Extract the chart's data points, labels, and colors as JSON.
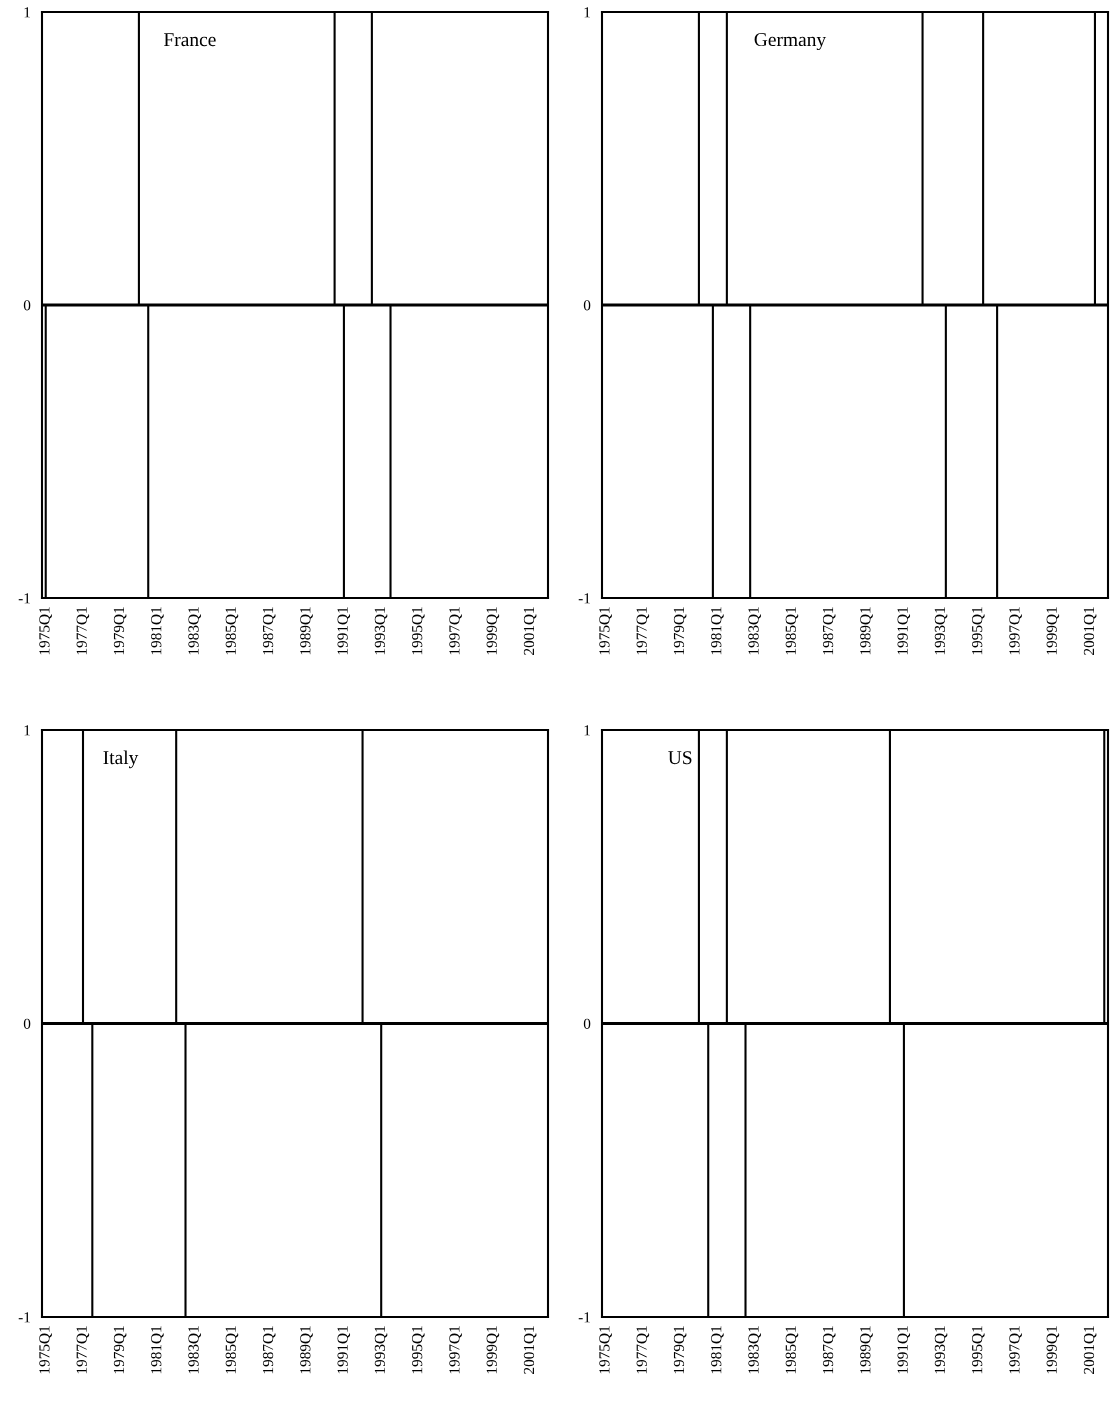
{
  "chart_data": [
    {
      "type": "bar",
      "title": "France",
      "color": "#000000",
      "ylim": [
        -1,
        1
      ],
      "yticks": [
        -1,
        0,
        1
      ],
      "categories": [
        "1975Q1",
        null,
        null,
        null,
        null,
        null,
        null,
        null,
        "1977Q1",
        null,
        null,
        null,
        null,
        null,
        null,
        null,
        "1979Q1",
        null,
        null,
        null,
        null,
        null,
        null,
        null,
        "1981Q1",
        null,
        null,
        null,
        null,
        null,
        null,
        null,
        "1983Q1",
        null,
        null,
        null,
        null,
        null,
        null,
        null,
        "1985Q1",
        null,
        null,
        null,
        null,
        null,
        null,
        null,
        "1987Q1",
        null,
        null,
        null,
        null,
        null,
        null,
        null,
        "1989Q1",
        null,
        null,
        null,
        null,
        null,
        null,
        null,
        "1991Q1",
        null,
        null,
        null,
        null,
        null,
        null,
        null,
        "1993Q1",
        null,
        null,
        null,
        null,
        null,
        null,
        null,
        "1995Q1",
        null,
        null,
        null,
        null,
        null,
        null,
        null,
        "1997Q1",
        null,
        null,
        null,
        null,
        null,
        null,
        null,
        "1999Q1",
        null,
        null,
        null,
        null,
        null,
        null,
        null,
        "2001Q1",
        null,
        null,
        null
      ],
      "values": [
        -1,
        0,
        0,
        0,
        0,
        0,
        0,
        0,
        0,
        0,
        0,
        0,
        0,
        0,
        0,
        0,
        0,
        0,
        0,
        0,
        1,
        0,
        -1,
        0,
        0,
        0,
        0,
        0,
        0,
        0,
        0,
        0,
        0,
        0,
        0,
        0,
        0,
        0,
        0,
        0,
        0,
        0,
        0,
        0,
        0,
        0,
        0,
        0,
        0,
        0,
        0,
        0,
        0,
        0,
        0,
        0,
        0,
        0,
        0,
        0,
        0,
        0,
        1,
        0,
        -1,
        0,
        0,
        0,
        0,
        0,
        1,
        0,
        0,
        0,
        -1,
        0,
        0,
        0,
        0,
        0,
        0,
        0,
        0,
        0,
        0,
        0,
        0,
        0,
        0,
        0,
        0,
        0,
        0,
        0,
        0,
        0,
        0,
        0,
        0,
        0,
        0,
        0,
        0,
        0,
        0,
        0,
        0,
        0
      ]
    },
    {
      "type": "bar",
      "title": "Germany",
      "color": "#000000",
      "ylim": [
        -1,
        1
      ],
      "yticks": [
        -1,
        0,
        1
      ],
      "categories": [
        "1975Q1",
        null,
        null,
        null,
        null,
        null,
        null,
        null,
        "1977Q1",
        null,
        null,
        null,
        null,
        null,
        null,
        null,
        "1979Q1",
        null,
        null,
        null,
        null,
        null,
        null,
        null,
        "1981Q1",
        null,
        null,
        null,
        null,
        null,
        null,
        null,
        "1983Q1",
        null,
        null,
        null,
        null,
        null,
        null,
        null,
        "1985Q1",
        null,
        null,
        null,
        null,
        null,
        null,
        null,
        "1987Q1",
        null,
        null,
        null,
        null,
        null,
        null,
        null,
        "1989Q1",
        null,
        null,
        null,
        null,
        null,
        null,
        null,
        "1991Q1",
        null,
        null,
        null,
        null,
        null,
        null,
        null,
        "1993Q1",
        null,
        null,
        null,
        null,
        null,
        null,
        null,
        "1995Q1",
        null,
        null,
        null,
        null,
        null,
        null,
        null,
        "1997Q1",
        null,
        null,
        null,
        null,
        null,
        null,
        null,
        "1999Q1",
        null,
        null,
        null,
        null,
        null,
        null,
        null,
        "2001Q1",
        null,
        null,
        null
      ],
      "values": [
        0,
        0,
        0,
        0,
        0,
        0,
        0,
        0,
        0,
        0,
        0,
        0,
        0,
        0,
        0,
        0,
        0,
        0,
        0,
        0,
        1,
        0,
        0,
        -1,
        0,
        0,
        1,
        0,
        0,
        0,
        0,
        -1,
        0,
        0,
        0,
        0,
        0,
        0,
        0,
        0,
        0,
        0,
        0,
        0,
        0,
        0,
        0,
        0,
        0,
        0,
        0,
        0,
        0,
        0,
        0,
        0,
        0,
        0,
        0,
        0,
        0,
        0,
        0,
        0,
        0,
        0,
        0,
        0,
        1,
        0,
        0,
        0,
        0,
        -1,
        0,
        0,
        0,
        0,
        0,
        0,
        0,
        1,
        0,
        0,
        -1,
        0,
        0,
        0,
        0,
        0,
        0,
        0,
        0,
        0,
        0,
        0,
        0,
        0,
        0,
        0,
        0,
        0,
        0,
        0,
        0,
        1,
        0,
        0
      ]
    },
    {
      "type": "bar",
      "title": "Italy",
      "color": "#000000",
      "ylim": [
        -1,
        1
      ],
      "yticks": [
        -1,
        0,
        1
      ],
      "categories": [
        "1975Q1",
        null,
        null,
        null,
        null,
        null,
        null,
        null,
        "1977Q1",
        null,
        null,
        null,
        null,
        null,
        null,
        null,
        "1979Q1",
        null,
        null,
        null,
        null,
        null,
        null,
        null,
        "1981Q1",
        null,
        null,
        null,
        null,
        null,
        null,
        null,
        "1983Q1",
        null,
        null,
        null,
        null,
        null,
        null,
        null,
        "1985Q1",
        null,
        null,
        null,
        null,
        null,
        null,
        null,
        "1987Q1",
        null,
        null,
        null,
        null,
        null,
        null,
        null,
        "1989Q1",
        null,
        null,
        null,
        null,
        null,
        null,
        null,
        "1991Q1",
        null,
        null,
        null,
        null,
        null,
        null,
        null,
        "1993Q1",
        null,
        null,
        null,
        null,
        null,
        null,
        null,
        "1995Q1",
        null,
        null,
        null,
        null,
        null,
        null,
        null,
        "1997Q1",
        null,
        null,
        null,
        null,
        null,
        null,
        null,
        "1999Q1",
        null,
        null,
        null,
        null,
        null,
        null,
        null,
        "2001Q1",
        null,
        null,
        null
      ],
      "values": [
        0,
        0,
        0,
        0,
        0,
        0,
        0,
        0,
        1,
        0,
        -1,
        0,
        0,
        0,
        0,
        0,
        0,
        0,
        0,
        0,
        0,
        0,
        0,
        0,
        0,
        0,
        0,
        0,
        1,
        0,
        -1,
        0,
        0,
        0,
        0,
        0,
        0,
        0,
        0,
        0,
        0,
        0,
        0,
        0,
        0,
        0,
        0,
        0,
        0,
        0,
        0,
        0,
        0,
        0,
        0,
        0,
        0,
        0,
        0,
        0,
        0,
        0,
        0,
        0,
        0,
        0,
        0,
        0,
        1,
        0,
        0,
        0,
        -1,
        0,
        0,
        0,
        0,
        0,
        0,
        0,
        0,
        0,
        0,
        0,
        0,
        0,
        0,
        0,
        0,
        0,
        0,
        0,
        0,
        0,
        0,
        0,
        0,
        0,
        0,
        0,
        0,
        0,
        0,
        0,
        0,
        0,
        0,
        0
      ]
    },
    {
      "type": "bar",
      "title": "US",
      "color": "#000000",
      "ylim": [
        -1,
        1
      ],
      "yticks": [
        -1,
        0,
        1
      ],
      "categories": [
        "1975Q1",
        null,
        null,
        null,
        null,
        null,
        null,
        null,
        "1977Q1",
        null,
        null,
        null,
        null,
        null,
        null,
        null,
        "1979Q1",
        null,
        null,
        null,
        null,
        null,
        null,
        null,
        "1981Q1",
        null,
        null,
        null,
        null,
        null,
        null,
        null,
        "1983Q1",
        null,
        null,
        null,
        null,
        null,
        null,
        null,
        "1985Q1",
        null,
        null,
        null,
        null,
        null,
        null,
        null,
        "1987Q1",
        null,
        null,
        null,
        null,
        null,
        null,
        null,
        "1989Q1",
        null,
        null,
        null,
        null,
        null,
        null,
        null,
        "1991Q1",
        null,
        null,
        null,
        null,
        null,
        null,
        null,
        "1993Q1",
        null,
        null,
        null,
        null,
        null,
        null,
        null,
        "1995Q1",
        null,
        null,
        null,
        null,
        null,
        null,
        null,
        "1997Q1",
        null,
        null,
        null,
        null,
        null,
        null,
        null,
        "1999Q1",
        null,
        null,
        null,
        null,
        null,
        null,
        null,
        "2001Q1",
        null,
        null,
        null
      ],
      "values": [
        0,
        0,
        0,
        0,
        0,
        0,
        0,
        0,
        0,
        0,
        0,
        0,
        0,
        0,
        0,
        0,
        0,
        0,
        0,
        0,
        1,
        0,
        -1,
        0,
        0,
        0,
        1,
        0,
        0,
        0,
        -1,
        0,
        0,
        0,
        0,
        0,
        0,
        0,
        0,
        0,
        0,
        0,
        0,
        0,
        0,
        0,
        0,
        0,
        0,
        0,
        0,
        0,
        0,
        0,
        0,
        0,
        0,
        0,
        0,
        0,
        0,
        1,
        0,
        0,
        -1,
        0,
        0,
        0,
        0,
        0,
        0,
        0,
        0,
        0,
        0,
        0,
        0,
        0,
        0,
        0,
        0,
        0,
        0,
        0,
        0,
        0,
        0,
        0,
        0,
        0,
        0,
        0,
        0,
        0,
        0,
        0,
        0,
        0,
        0,
        0,
        0,
        0,
        0,
        0,
        0,
        0,
        0,
        1
      ]
    }
  ]
}
